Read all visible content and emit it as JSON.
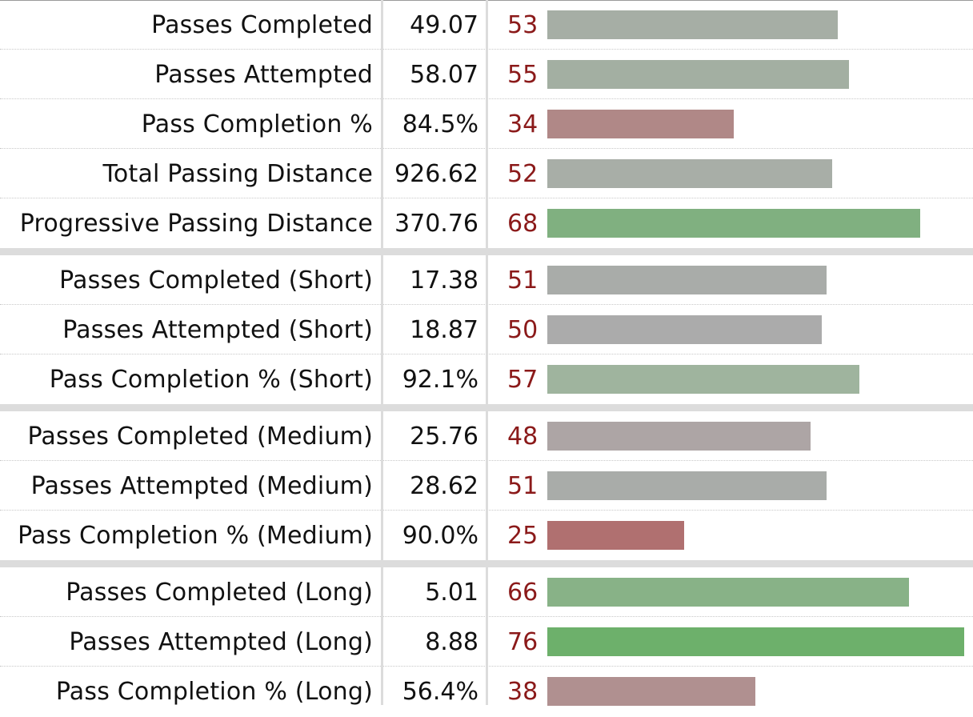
{
  "chart_data": {
    "type": "bar",
    "orientation": "horizontal",
    "xlim": [
      0,
      100
    ],
    "groups": [
      {
        "rows": [
          {
            "label": "Passes Completed",
            "value": "49.07",
            "percentile": 53,
            "color": "#a6aea5"
          },
          {
            "label": "Passes Attempted",
            "value": "58.07",
            "percentile": 55,
            "color": "#a3afa2"
          },
          {
            "label": "Pass Completion %",
            "value": "84.5%",
            "percentile": 34,
            "color": "#b08887"
          },
          {
            "label": "Total Passing Distance",
            "value": "926.62",
            "percentile": 52,
            "color": "#a8aea7"
          },
          {
            "label": "Progressive Passing Distance",
            "value": "370.76",
            "percentile": 68,
            "color": "#80b080"
          }
        ]
      },
      {
        "rows": [
          {
            "label": "Passes Completed (Short)",
            "value": "17.38",
            "percentile": 51,
            "color": "#a9aca9"
          },
          {
            "label": "Passes Attempted (Short)",
            "value": "18.87",
            "percentile": 50,
            "color": "#ababab"
          },
          {
            "label": "Pass Completion % (Short)",
            "value": "92.1%",
            "percentile": 57,
            "color": "#9fb49e"
          }
        ]
      },
      {
        "rows": [
          {
            "label": "Passes Completed (Medium)",
            "value": "25.76",
            "percentile": 48,
            "color": "#ada5a5"
          },
          {
            "label": "Passes Attempted (Medium)",
            "value": "28.62",
            "percentile": 51,
            "color": "#a9aca9"
          },
          {
            "label": "Pass Completion % (Medium)",
            "value": "90.0%",
            "percentile": 25,
            "color": "#b07070"
          }
        ]
      },
      {
        "rows": [
          {
            "label": "Passes Completed (Long)",
            "value": "5.01",
            "percentile": 66,
            "color": "#88b287"
          },
          {
            "label": "Passes Attempted (Long)",
            "value": "8.88",
            "percentile": 76,
            "color": "#6db06b"
          },
          {
            "label": "Pass Completion % (Long)",
            "value": "56.4%",
            "percentile": 38,
            "color": "#b09090"
          }
        ]
      }
    ]
  }
}
